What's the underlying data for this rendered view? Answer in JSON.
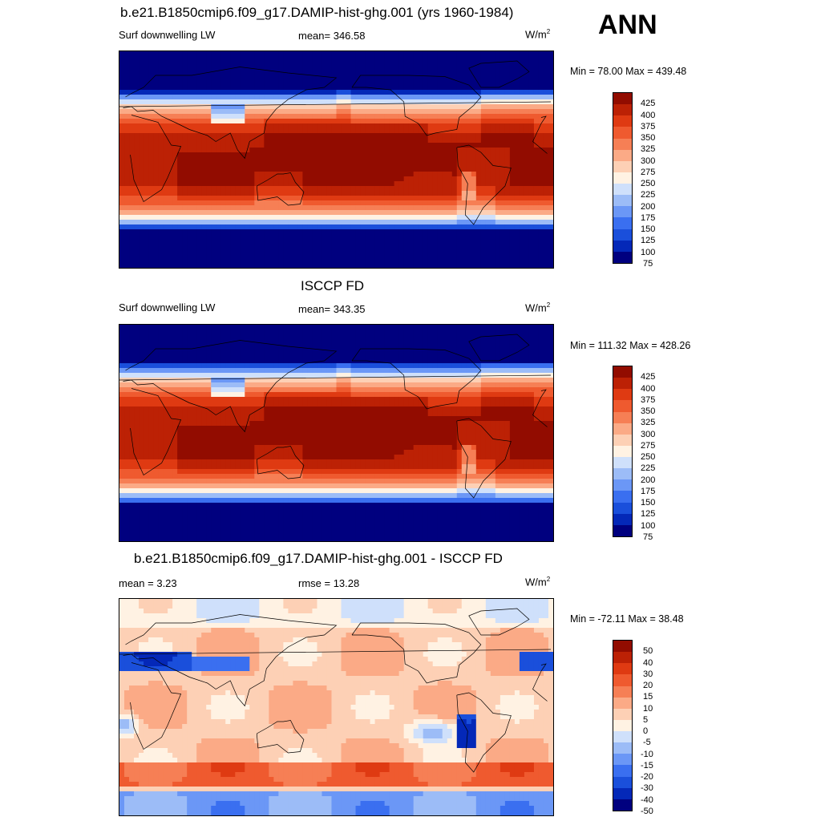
{
  "season": "ANN",
  "units_base": "W/m",
  "units_exp": "2",
  "colors": {
    "abs_scale": [
      "#00007f",
      "#0428b8",
      "#1a4fdb",
      "#3a6ff0",
      "#6b97f6",
      "#9cbcf7",
      "#cfe0fb",
      "#fff2e3",
      "#fdd0b5",
      "#fbaa86",
      "#f67f55",
      "#ef5a2f",
      "#df3a12",
      "#bc2105",
      "#920c00"
    ],
    "diff_scale": [
      "#00007f",
      "#0428b8",
      "#1a4fdb",
      "#3a6ff0",
      "#6b97f6",
      "#9cbcf7",
      "#cfe0fb",
      "#fff2e3",
      "#fdd0b5",
      "#fbaa86",
      "#f67f55",
      "#ef5a2f",
      "#df3a12",
      "#bc2105",
      "#920c00"
    ]
  },
  "panels": [
    {
      "title": "b.e21.B1850cmip6.f09_g17.DAMIP-hist-ghg.001 (yrs 1960-1984)",
      "left": "Surf downwelling LW",
      "center": "mean= 346.58",
      "minmax": "Min =  78.00 Max = 439.48",
      "levels": [
        "425",
        "400",
        "375",
        "350",
        "325",
        "300",
        "275",
        "250",
        "225",
        "200",
        "175",
        "150",
        "125",
        "100",
        "75"
      ],
      "field": "model"
    },
    {
      "title": "ISCCP FD",
      "left": "Surf downwelling LW",
      "center": "mean= 343.35",
      "minmax": "Min = 111.32 Max = 428.26",
      "levels": [
        "425",
        "400",
        "375",
        "350",
        "325",
        "300",
        "275",
        "250",
        "225",
        "200",
        "175",
        "150",
        "125",
        "100",
        "75"
      ],
      "field": "obs"
    },
    {
      "title": "b.e21.B1850cmip6.f09_g17.DAMIP-hist-ghg.001 - ISCCP FD",
      "left": "mean =   3.23",
      "center": "rmse =  13.28",
      "minmax": "Min = -72.11 Max =  38.48",
      "levels": [
        "50",
        "40",
        "30",
        "20",
        "15",
        "10",
        "5",
        "0",
        "-5",
        "-10",
        "-15",
        "-20",
        "-30",
        "-40",
        "-50"
      ],
      "field": "diff"
    }
  ]
}
